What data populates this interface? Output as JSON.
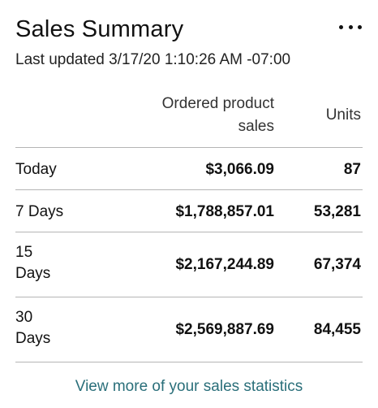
{
  "header": {
    "title": "Sales Summary",
    "last_updated": "Last updated 3/17/20 1:10:26 AM -07:00",
    "more_icon": "more-horizontal-icon"
  },
  "table": {
    "columns": {
      "sales_line1": "Ordered product",
      "sales_line2": "sales",
      "units": "Units"
    },
    "rows": [
      {
        "period_line1": "Today",
        "period_line2": "",
        "sales": "$3,066.09",
        "units": "87"
      },
      {
        "period_line1": "7 Days",
        "period_line2": "",
        "sales": "$1,788,857.01",
        "units": "53,281"
      },
      {
        "period_line1": "15",
        "period_line2": "Days",
        "sales": "$2,167,244.89",
        "units": "67,374"
      },
      {
        "period_line1": "30",
        "period_line2": "Days",
        "sales": "$2,569,887.69",
        "units": "84,455"
      }
    ]
  },
  "footer": {
    "link_text": "View more of your sales statistics"
  },
  "colors": {
    "link": "#2a6f7a",
    "divider": "#b5b5b5"
  }
}
